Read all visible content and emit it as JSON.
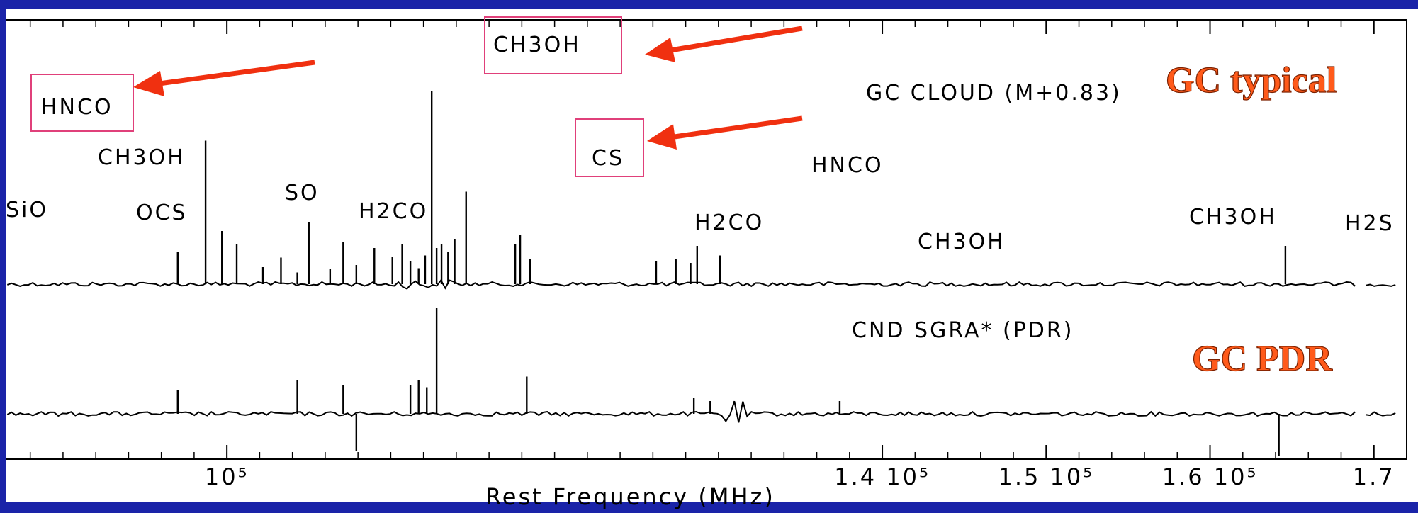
{
  "chart_data": {
    "type": "line",
    "xlabel": "Rest Frequency (MHz)",
    "xlim": [
      86500,
      172000
    ],
    "x_ticks": [
      {
        "value": 100000,
        "label": "10⁵"
      },
      {
        "value": 140000,
        "label": "1.4 10⁵"
      },
      {
        "value": 150000,
        "label": "1.5 10⁵"
      },
      {
        "value": 160000,
        "label": "1.6 10⁵"
      },
      {
        "value": 170000,
        "label": "1.7"
      }
    ],
    "series": [
      {
        "name": "GC CLOUD (M+0.83)",
        "callout": "GC typical",
        "lines": [
          {
            "freq": 97000,
            "height": 0.3
          },
          {
            "freq": 98700,
            "height": 1.35
          },
          {
            "freq": 99700,
            "height": 0.5
          },
          {
            "freq": 100600,
            "height": 0.38
          },
          {
            "freq": 102200,
            "height": 0.16
          },
          {
            "freq": 103300,
            "height": 0.25
          },
          {
            "freq": 104300,
            "height": 0.11
          },
          {
            "freq": 105000,
            "height": 0.58
          },
          {
            "freq": 106300,
            "height": 0.14
          },
          {
            "freq": 107100,
            "height": 0.4
          },
          {
            "freq": 107900,
            "height": 0.18
          },
          {
            "freq": 109000,
            "height": 0.34
          },
          {
            "freq": 110100,
            "height": 0.26
          },
          {
            "freq": 110700,
            "height": 0.38
          },
          {
            "freq": 111200,
            "height": 0.22
          },
          {
            "freq": 111700,
            "height": 0.15
          },
          {
            "freq": 112100,
            "height": 0.27
          },
          {
            "freq": 112500,
            "height": 1.82
          },
          {
            "freq": 112800,
            "height": 0.34
          },
          {
            "freq": 113100,
            "height": 0.38
          },
          {
            "freq": 113500,
            "height": 0.3
          },
          {
            "freq": 113900,
            "height": 0.42
          },
          {
            "freq": 114600,
            "height": 0.87
          },
          {
            "freq": 117600,
            "height": 0.38
          },
          {
            "freq": 117900,
            "height": 0.46
          },
          {
            "freq": 118500,
            "height": 0.24
          },
          {
            "freq": 126200,
            "height": 0.22
          },
          {
            "freq": 127400,
            "height": 0.24
          },
          {
            "freq": 128300,
            "height": 0.2
          },
          {
            "freq": 128700,
            "height": 0.36
          },
          {
            "freq": 130100,
            "height": 0.27
          },
          {
            "freq": 164600,
            "height": 0.36
          }
        ]
      },
      {
        "name": "CND SGRA* (PDR)",
        "callout": "GC PDR",
        "lines": [
          {
            "freq": 97000,
            "height": 0.22
          },
          {
            "freq": 104300,
            "height": 0.32
          },
          {
            "freq": 107100,
            "height": 0.27
          },
          {
            "freq": 107900,
            "height": -0.35
          },
          {
            "freq": 111200,
            "height": 0.27
          },
          {
            "freq": 111700,
            "height": 0.32
          },
          {
            "freq": 112200,
            "height": 0.25
          },
          {
            "freq": 112800,
            "height": 1.0
          },
          {
            "freq": 118300,
            "height": 0.35
          },
          {
            "freq": 128500,
            "height": 0.15
          },
          {
            "freq": 129500,
            "height": 0.12
          },
          {
            "freq": 137400,
            "height": 0.12
          },
          {
            "freq": 164200,
            "height": -0.4
          }
        ]
      }
    ],
    "annotations": {
      "SiO": "SiO",
      "HNCO_boxed": "HNCO",
      "CH3OH_1": "CH3OH",
      "OCS": "OCS",
      "SO": "SO",
      "H2CO_1": "H2CO",
      "CH3OH_boxed": "CH3OH",
      "CS_boxed": "CS",
      "H2CO_2": "H2CO",
      "HNCO_2": "HNCO",
      "CH3OH_2": "CH3OH",
      "CH3OH_3": "CH3OH",
      "H2S": "H2S"
    },
    "colors": {
      "background": "#1a23a8",
      "plot": "#ffffff",
      "trace": "#000000",
      "box": "#e0407a",
      "arrow": "#f03010",
      "callout": "#ff5a1a"
    }
  }
}
